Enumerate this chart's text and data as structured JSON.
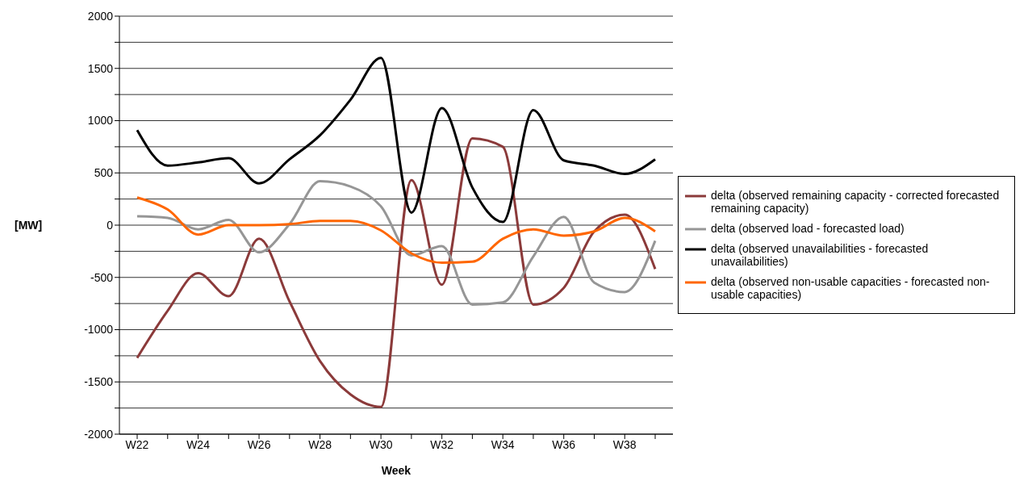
{
  "chart_data": {
    "type": "line",
    "xlabel": "Week",
    "ylabel": "[MW]",
    "categories": [
      "W22",
      null,
      "W24",
      null,
      "W26",
      null,
      "W28",
      null,
      "W30",
      null,
      "W32",
      null,
      "W34",
      null,
      "W36",
      null,
      "W38",
      null
    ],
    "ylim": [
      -2000,
      2000
    ],
    "yticks": [
      -2000,
      {
        "value": -1750,
        "label": null
      },
      -1500,
      {
        "value": -1250,
        "label": null
      },
      -1000,
      {
        "value": -750,
        "label": null
      },
      -500,
      {
        "value": -250,
        "label": null
      },
      0,
      {
        "value": 250,
        "label": null
      },
      500,
      {
        "value": 750,
        "label": null
      },
      1000,
      {
        "value": 1250,
        "label": null
      },
      1500,
      {
        "value": 1750,
        "label": null
      },
      2000
    ],
    "grid": "y",
    "legend": "right",
    "marker": "none",
    "line_style": "solid",
    "series": [
      {
        "name": "delta (observed remaining capacity - corrected forecasted remaining capacity)",
        "color": "#8b3a3a",
        "values": [
          -1270,
          -820,
          -460,
          -680,
          -130,
          -730,
          -1300,
          -1620,
          -1740,
          430,
          -570,
          830,
          750,
          -760,
          -600,
          -60,
          100,
          -420
        ]
      },
      {
        "name": "delta (observed load - forecasted load)",
        "color": "#969696",
        "values": [
          85,
          70,
          -40,
          50,
          -260,
          10,
          420,
          370,
          180,
          -290,
          -200,
          -760,
          -740,
          -300,
          80,
          -550,
          -640,
          -150
        ]
      },
      {
        "name": "delta (observed unavailabilities - forecasted unavailabilities)",
        "color": "#000000",
        "values": [
          910,
          570,
          600,
          640,
          400,
          630,
          860,
          1200,
          1600,
          120,
          1120,
          360,
          30,
          1100,
          620,
          570,
          490,
          630
        ]
      },
      {
        "name": "delta (observed non-usable capacities - forecasted non-usable capacities)",
        "color": "#ff6600",
        "values": [
          265,
          150,
          -90,
          0,
          0,
          10,
          40,
          40,
          -50,
          -270,
          -360,
          -350,
          -130,
          -40,
          -100,
          -60,
          70,
          -60
        ]
      }
    ]
  }
}
